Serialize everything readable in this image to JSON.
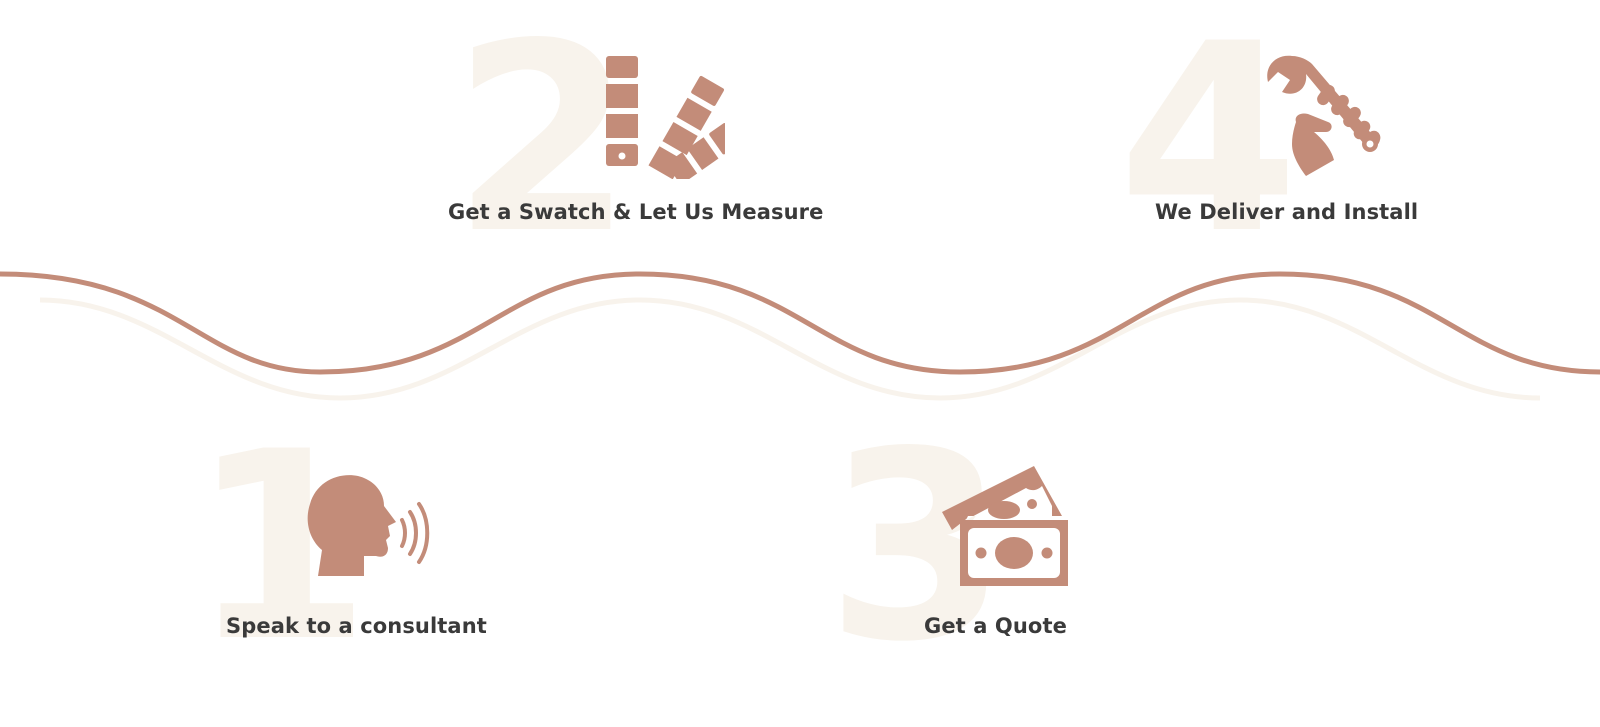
{
  "steps": [
    {
      "number": "1",
      "label": "Speak to a consultant",
      "icon": "speaking-head-icon"
    },
    {
      "number": "2",
      "label": "Get a Swatch & Let Us Measure",
      "icon": "color-swatch-icon"
    },
    {
      "number": "3",
      "label": "Get a Quote",
      "icon": "money-bills-icon"
    },
    {
      "number": "4",
      "label": "We Deliver and Install",
      "icon": "wrench-hand-icon"
    }
  ],
  "colors": {
    "accent": "#c38c79",
    "number_watermark": "#f8f3ec",
    "wave_secondary": "#f8f3ec",
    "label_text": "#3a3a3a",
    "background": "#ffffff"
  }
}
